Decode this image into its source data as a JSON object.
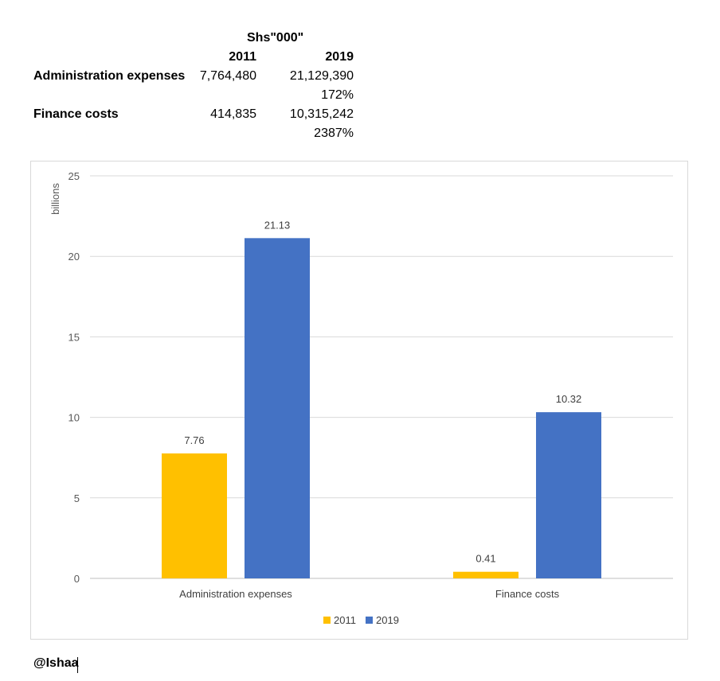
{
  "table": {
    "currency_header": "Shs\"000\"",
    "col_2011": "2011",
    "col_2019": "2019",
    "rows": [
      {
        "label": "Administration expenses",
        "v2011": "7,764,480",
        "v2019": "21,129,390",
        "change": "172%"
      },
      {
        "label": "Finance costs",
        "v2011": "414,835",
        "v2019": "10,315,242",
        "change": "2387%"
      }
    ]
  },
  "chart_data": {
    "type": "bar",
    "categories": [
      "Administration expenses",
      "Finance costs"
    ],
    "series": [
      {
        "name": "2011",
        "values": [
          7.76,
          0.41
        ],
        "color": "#FFC000"
      },
      {
        "name": "2019",
        "values": [
          21.13,
          10.32
        ],
        "color": "#4472C4"
      }
    ],
    "ylabel": "billions",
    "ylim": [
      0,
      25
    ],
    "yticks": [
      0,
      5,
      10,
      15,
      20,
      25
    ],
    "grid": true,
    "legend": "bottom",
    "data_labels": true
  },
  "footer": {
    "handle": "@Ishaa"
  }
}
